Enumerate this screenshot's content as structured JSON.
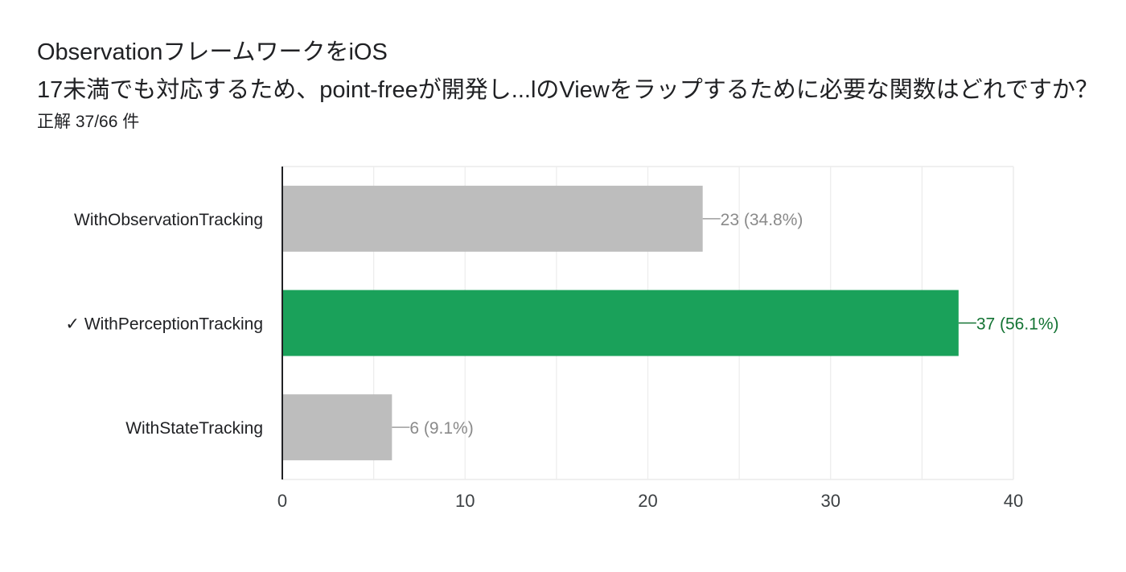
{
  "question": {
    "title_line1": "ObservationフレームワークをiOS",
    "title_line2": "17未満でも対応するため、point-freeが開発し...lのViewをラップするために必要な関数はどれですか？",
    "score": "正解 37/66 件"
  },
  "chart_data": {
    "type": "bar",
    "orientation": "horizontal",
    "categories": [
      "WithObservationTracking",
      "WithPerceptionTracking",
      "WithStateTracking"
    ],
    "correct_mark": "✓",
    "correct": [
      false,
      true,
      false
    ],
    "values": [
      23,
      37,
      6
    ],
    "data_labels": [
      "23 (34.8%)",
      "37 (56.1%)",
      "6 (9.1%)"
    ],
    "xlim": [
      0,
      40
    ],
    "xticks": [
      "0",
      "10",
      "20",
      "30",
      "40"
    ],
    "grid": true,
    "colors": {
      "default_bar": "#bdbdbd",
      "correct_bar": "#1aa15a",
      "default_label": "#8a8a8a",
      "correct_label": "#137333",
      "grid": "#ececec",
      "axis": "#202124"
    }
  }
}
